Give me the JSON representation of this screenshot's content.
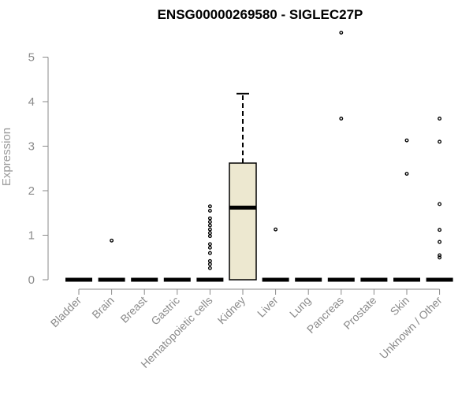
{
  "chart_data": {
    "type": "box",
    "title": "ENSG00000269580 - SIGLEC27P",
    "xlabel": "",
    "ylabel": "Expression",
    "ylim": [
      0,
      5.6
    ],
    "yticks": [
      0,
      1,
      2,
      3,
      4,
      5
    ],
    "grid": false,
    "colors": {
      "box_fill": "#ede8d0",
      "stroke": "#000000",
      "axis": "#8a8a8a",
      "tick_text": "#8a8a8a"
    },
    "categories": [
      "Bladder",
      "Brain",
      "Breast",
      "Gastric",
      "Hematopoietic cells",
      "Kidney",
      "Liver",
      "Lung",
      "Pancreas",
      "Prostate",
      "Skin",
      "Unknown / Other"
    ],
    "boxes": [
      {
        "category": "Bladder",
        "q1": 0,
        "median": 0,
        "q3": 0,
        "whisker_low": 0,
        "whisker_high": 0,
        "outliers": []
      },
      {
        "category": "Brain",
        "q1": 0,
        "median": 0,
        "q3": 0,
        "whisker_low": 0,
        "whisker_high": 0,
        "outliers": [
          0.88
        ]
      },
      {
        "category": "Breast",
        "q1": 0,
        "median": 0,
        "q3": 0,
        "whisker_low": 0,
        "whisker_high": 0,
        "outliers": []
      },
      {
        "category": "Gastric",
        "q1": 0,
        "median": 0,
        "q3": 0,
        "whisker_low": 0,
        "whisker_high": 0,
        "outliers": []
      },
      {
        "category": "Hematopoietic cells",
        "q1": 0,
        "median": 0,
        "q3": 0,
        "whisker_low": 0,
        "whisker_high": 0,
        "outliers": [
          0.26,
          0.35,
          0.42,
          0.6,
          0.72,
          0.8,
          0.98,
          1.05,
          1.13,
          1.22,
          1.3,
          1.38,
          1.55,
          1.65
        ]
      },
      {
        "category": "Kidney",
        "q1": 0,
        "median": 1.62,
        "q3": 2.62,
        "whisker_low": 0,
        "whisker_high": 4.18,
        "outliers": []
      },
      {
        "category": "Liver",
        "q1": 0,
        "median": 0,
        "q3": 0,
        "whisker_low": 0,
        "whisker_high": 0,
        "outliers": [
          1.13
        ]
      },
      {
        "category": "Lung",
        "q1": 0,
        "median": 0,
        "q3": 0,
        "whisker_low": 0,
        "whisker_high": 0,
        "outliers": []
      },
      {
        "category": "Pancreas",
        "q1": 0,
        "median": 0,
        "q3": 0,
        "whisker_low": 0,
        "whisker_high": 0,
        "outliers": [
          3.62,
          5.55
        ]
      },
      {
        "category": "Prostate",
        "q1": 0,
        "median": 0,
        "q3": 0,
        "whisker_low": 0,
        "whisker_high": 0,
        "outliers": []
      },
      {
        "category": "Skin",
        "q1": 0,
        "median": 0,
        "q3": 0,
        "whisker_low": 0,
        "whisker_high": 0,
        "outliers": [
          2.38,
          3.13
        ]
      },
      {
        "category": "Unknown / Other",
        "q1": 0,
        "median": 0,
        "q3": 0,
        "whisker_low": 0,
        "whisker_high": 0,
        "outliers": [
          0.5,
          0.55,
          0.85,
          1.12,
          1.7,
          3.1,
          3.62
        ]
      }
    ]
  }
}
